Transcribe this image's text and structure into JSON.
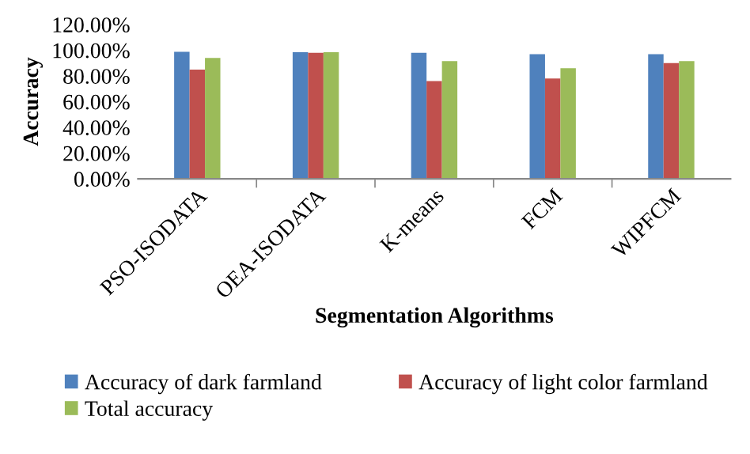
{
  "chart_data": {
    "type": "bar",
    "xlabel": "Segmentation Algorithms",
    "ylabel": "Accuracy",
    "categories": [
      "PSO-ISODATA",
      "OEA-ISODATA",
      "K-means",
      "FCM",
      "WIPFCM"
    ],
    "series": [
      {
        "name": "Accuracy of dark farmland",
        "color": "#4f81bd",
        "values": [
          98.8,
          98.5,
          98,
          97,
          97
        ]
      },
      {
        "name": "Accuracy of light color farmland",
        "color": "#c0504d",
        "values": [
          85,
          98,
          76,
          78,
          90
        ]
      },
      {
        "name": "Total accuracy",
        "color": "#9bbb59",
        "values": [
          94,
          98.5,
          91.5,
          86,
          91.5
        ]
      }
    ],
    "ylim": [
      0,
      120
    ],
    "yticks": [
      {
        "value": 0,
        "label": "0.00%"
      },
      {
        "value": 20,
        "label": "20.00%"
      },
      {
        "value": 40,
        "label": "40.00%"
      },
      {
        "value": 60,
        "label": "60.00%"
      },
      {
        "value": 80,
        "label": "80.00%"
      },
      {
        "value": 100,
        "label": "100.00%"
      },
      {
        "value": 120,
        "label": "120.00%"
      }
    ],
    "grid": false,
    "legend": "bottom"
  }
}
